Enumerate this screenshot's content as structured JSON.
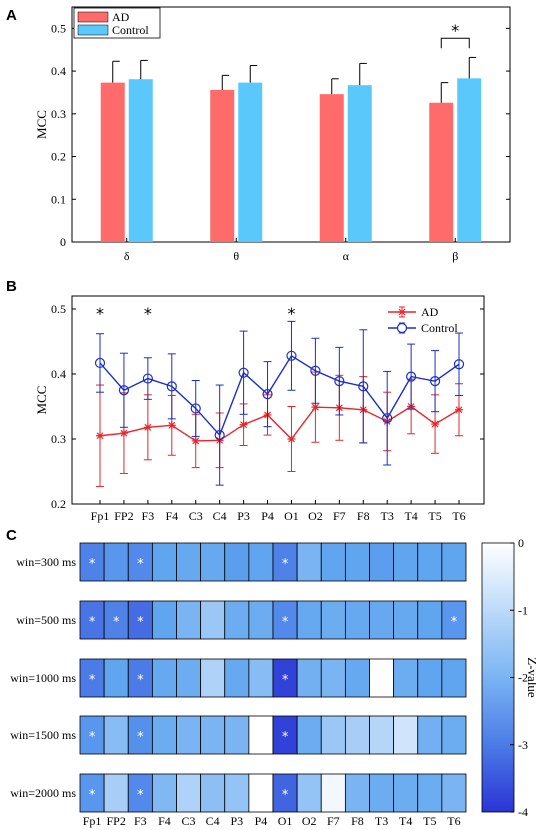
{
  "panels": {
    "a": "A",
    "b": "B",
    "c": "C"
  },
  "chart_data": [
    {
      "type": "bar",
      "ylabel": "MCC",
      "ylim": [
        0,
        0.55
      ],
      "yticks": [
        "0",
        "0.1",
        "0.2",
        "0.3",
        "0.4",
        "0.5"
      ],
      "categories": [
        "δ",
        "θ",
        "α",
        "β"
      ],
      "series": [
        {
          "name": "AD",
          "color": "#ff6b6b",
          "values": [
            0.373,
            0.356,
            0.346,
            0.326
          ],
          "errors": [
            0.05,
            0.034,
            0.036,
            0.047
          ]
        },
        {
          "name": "Control",
          "color": "#5ac8fa",
          "values": [
            0.381,
            0.373,
            0.367,
            0.383
          ],
          "errors": [
            0.044,
            0.04,
            0.051,
            0.049
          ]
        }
      ],
      "significance": [
        {
          "category": 3,
          "label": "*"
        }
      ]
    },
    {
      "type": "line",
      "ylabel": "MCC",
      "ylim": [
        0.2,
        0.52
      ],
      "yticks": [
        "0.2",
        "0.3",
        "0.4",
        "0.5"
      ],
      "categories": [
        "Fp1",
        "FP2",
        "F3",
        "F4",
        "C3",
        "C4",
        "P3",
        "P4",
        "O1",
        "O2",
        "F7",
        "F8",
        "T3",
        "T4",
        "T5",
        "T6"
      ],
      "series": [
        {
          "name": "AD",
          "color": "#e8262b",
          "marker": "✱",
          "values": [
            0.305,
            0.309,
            0.318,
            0.321,
            0.297,
            0.298,
            0.322,
            0.337,
            0.3,
            0.349,
            0.348,
            0.345,
            0.327,
            0.35,
            0.323,
            0.345
          ],
          "errors": [
            0.078,
            0.062,
            0.05,
            0.046,
            0.041,
            0.042,
            0.032,
            0.031,
            0.05,
            0.054,
            0.05,
            0.051,
            0.045,
            0.042,
            0.045,
            0.04
          ]
        },
        {
          "name": "Control",
          "color": "#1a2ec9",
          "marker": "○",
          "values": [
            0.417,
            0.375,
            0.393,
            0.381,
            0.347,
            0.306,
            0.402,
            0.369,
            0.428,
            0.405,
            0.389,
            0.381,
            0.332,
            0.396,
            0.389,
            0.415
          ],
          "errors": [
            0.045,
            0.057,
            0.032,
            0.05,
            0.043,
            0.077,
            0.064,
            0.05,
            0.053,
            0.05,
            0.052,
            0.087,
            0.072,
            0.05,
            0.047,
            0.048
          ]
        }
      ],
      "significance": [
        {
          "category": 0,
          "label": "*"
        },
        {
          "category": 2,
          "label": "*"
        },
        {
          "category": 8,
          "label": "*"
        }
      ]
    },
    {
      "type": "heatmap",
      "colorbar_label": "Z-value",
      "colorbar_range": [
        -4,
        0
      ],
      "colorbar_ticks": [
        "0",
        "-1",
        "-2",
        "-3",
        "-4"
      ],
      "columns": [
        "Fp1",
        "FP2",
        "F3",
        "F4",
        "C3",
        "C4",
        "P3",
        "P4",
        "O1",
        "O2",
        "F7",
        "F8",
        "T3",
        "T4",
        "T5",
        "T6"
      ],
      "rows": [
        {
          "label": "win=300 ms",
          "values": [
            -2.9,
            -2.6,
            -2.8,
            -2.4,
            -2.3,
            -2.3,
            -2.5,
            -2.4,
            -2.9,
            -2.0,
            -2.4,
            -2.4,
            -2.5,
            -2.4,
            -2.4,
            -2.4
          ],
          "sig": [
            0,
            2,
            8
          ]
        },
        {
          "label": "win=500 ms",
          "values": [
            -3.1,
            -2.9,
            -3.2,
            -2.4,
            -2.0,
            -1.5,
            -2.2,
            -2.2,
            -2.8,
            -2.3,
            -2.2,
            -2.3,
            -2.3,
            -2.3,
            -2.4,
            -2.6
          ],
          "sig": [
            0,
            1,
            2,
            8,
            15
          ]
        },
        {
          "label": "win=1000 ms",
          "values": [
            -3.0,
            -2.4,
            -3.0,
            -2.3,
            -2.2,
            -1.2,
            -2.3,
            -1.8,
            -3.8,
            -2.1,
            -2.0,
            -2.3,
            0.0,
            -2.2,
            -2.4,
            -2.4
          ],
          "sig": [
            0,
            2,
            8
          ]
        },
        {
          "label": "win=1500 ms",
          "values": [
            -2.6,
            -1.8,
            -2.7,
            -2.2,
            -2.0,
            -2.0,
            -2.0,
            0.0,
            -3.8,
            -2.2,
            -1.5,
            -1.3,
            -1.1,
            -0.7,
            -2.1,
            -2.2
          ],
          "sig": [
            0,
            2,
            8
          ]
        },
        {
          "label": "win=2000 ms",
          "values": [
            -2.6,
            -1.3,
            -2.8,
            -1.9,
            -1.2,
            -1.7,
            -1.6,
            0.0,
            -3.3,
            -1.6,
            -0.2,
            -2.0,
            -2.2,
            -2.2,
            -2.2,
            -2.0
          ],
          "sig": [
            0,
            2,
            8
          ]
        }
      ]
    }
  ]
}
